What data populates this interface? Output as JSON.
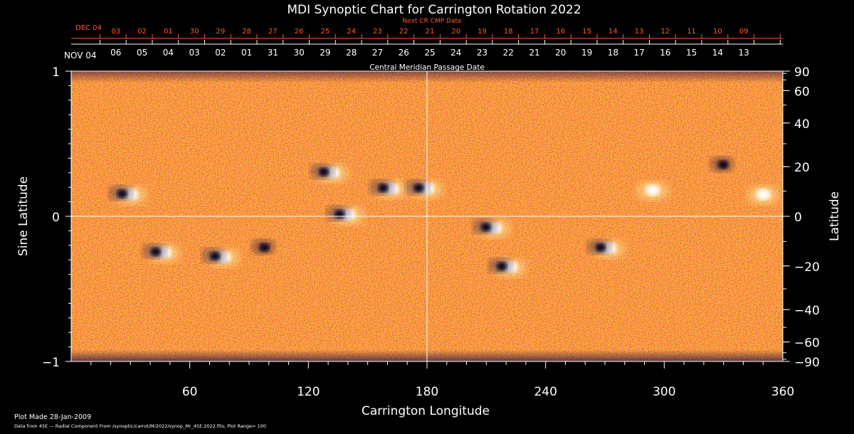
{
  "chart_data": {
    "type": "heatmap",
    "title": "MDI Synoptic Chart for Carrington Rotation 2022",
    "xlabel": "Carrington Longitude",
    "ylabel_left": "Sine Latitude",
    "ylabel_right": "Latitude",
    "top_axis_label": "Central Meridian Passage Date",
    "next_cr_label": "Next CR CMP Date",
    "xlim": [
      0,
      360
    ],
    "ylim": [
      -1,
      1
    ],
    "x_ticks": [
      60,
      120,
      180,
      240,
      300,
      360
    ],
    "y_ticks_left": [
      {
        "v": 1,
        "label": "1"
      },
      {
        "v": 0,
        "label": "0"
      },
      {
        "v": -1,
        "label": "−1"
      }
    ],
    "latitude_ticks": [
      90,
      60,
      40,
      20,
      0,
      -20,
      -40,
      -60,
      -90
    ],
    "latitude_labels": [
      "90",
      "60",
      "40",
      "20",
      "0",
      "−20",
      "−40",
      "−60",
      "−90"
    ],
    "cmp_dates": {
      "start_label": "NOV 04",
      "days": [
        "06",
        "05",
        "04",
        "03",
        "02",
        "01",
        "31",
        "30",
        "29",
        "28",
        "27",
        "26",
        "25",
        "24",
        "23",
        "22",
        "21",
        "20",
        "19",
        "18",
        "17",
        "16",
        "15",
        "14",
        "13"
      ]
    },
    "next_cr_dates": {
      "start_label": "DEC 04",
      "days": [
        "03",
        "02",
        "01",
        "30",
        "29",
        "28",
        "27",
        "26",
        "25",
        "24",
        "23",
        "22",
        "21",
        "20",
        "19",
        "18",
        "17",
        "16",
        "15",
        "14",
        "13",
        "12",
        "11",
        "10",
        "09"
      ]
    },
    "grid_lines": {
      "longitude": 180,
      "sine_latitude": 0
    },
    "colormap": [
      "#0a0a3a",
      "#8a1a10",
      "#e23a08",
      "#ff6a10",
      "#ffb040",
      "#fff3c0",
      "#ffffff"
    ],
    "plot_range": 100,
    "active_regions": [
      {
        "lon": 28,
        "sinlat": 0.15,
        "polarity": "bipolar"
      },
      {
        "lon": 45,
        "sinlat": -0.25,
        "polarity": "bipolar"
      },
      {
        "lon": 75,
        "sinlat": -0.28,
        "polarity": "bipolar"
      },
      {
        "lon": 100,
        "sinlat": -0.22,
        "polarity": "negative"
      },
      {
        "lon": 130,
        "sinlat": 0.3,
        "polarity": "bipolar"
      },
      {
        "lon": 138,
        "sinlat": 0.01,
        "polarity": "bipolar"
      },
      {
        "lon": 160,
        "sinlat": 0.19,
        "polarity": "bipolar"
      },
      {
        "lon": 178,
        "sinlat": 0.19,
        "polarity": "bipolar"
      },
      {
        "lon": 212,
        "sinlat": -0.08,
        "polarity": "bipolar"
      },
      {
        "lon": 220,
        "sinlat": -0.35,
        "polarity": "bipolar"
      },
      {
        "lon": 270,
        "sinlat": -0.22,
        "polarity": "bipolar"
      },
      {
        "lon": 292,
        "sinlat": 0.18,
        "polarity": "positive"
      },
      {
        "lon": 332,
        "sinlat": 0.35,
        "polarity": "negative"
      },
      {
        "lon": 348,
        "sinlat": 0.15,
        "polarity": "positive"
      }
    ]
  },
  "footer": {
    "plot_made": "Plot Made 28-Jan-2009",
    "data_source": "Data from 45E — Radial Component From /synoptic/carrot/M/2022/synop_Mr_45E.2022.fits; Plot Range=  100"
  }
}
